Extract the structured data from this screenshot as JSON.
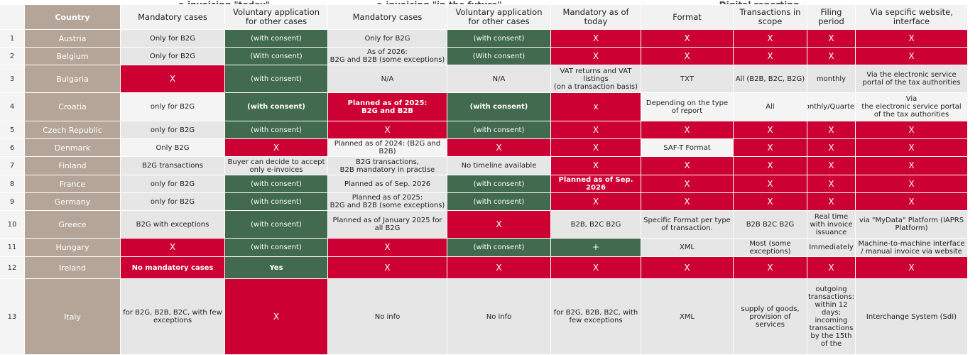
{
  "groups": [
    {
      "label": "e-invoicing \"today\"",
      "from": 2,
      "span": 2
    },
    {
      "label": "e-invoicing \"in the future\"",
      "from": 4,
      "span": 2
    },
    {
      "label": "Digital reporting",
      "from": 6,
      "span": 5
    }
  ],
  "header": [
    "Country",
    "Mandatory cases",
    "Voluntary application for other cases",
    "Mandatory cases",
    "Voluntary application for other cases",
    "Mandatory as of today",
    "Format",
    "Transactions in scope",
    "Filing period",
    "Via sepcific website, interface"
  ],
  "rows": [
    {
      "no": "1",
      "country": "Austria",
      "cells": [
        {
          "text": "Only for B2G",
          "color": "#e6e6e6"
        },
        {
          "text": "(with consent)",
          "color": "#416a4f"
        },
        {
          "text": "Only for B2G",
          "color": "#e6e6e6"
        },
        {
          "text": "(with consent)",
          "color": "#416a4f"
        },
        {
          "text": "X",
          "color": "#cc0033"
        },
        {
          "text": "X",
          "color": "#cc0033"
        },
        {
          "text": "X",
          "color": "#cc0033"
        },
        {
          "text": "X",
          "color": "#cc0033"
        },
        {
          "text": "X",
          "color": "#cc0033"
        }
      ]
    },
    {
      "no": "2",
      "country": "Belgium",
      "cells": [
        {
          "text": "Only for B2G",
          "color": "#e6e6e6"
        },
        {
          "text": "(With consent)",
          "color": "#416a4f"
        },
        {
          "text": "As of 2026:\nB2G and B2B (some exceptions)",
          "color": "#e6e6e6"
        },
        {
          "text": "(With consent)",
          "color": "#416a4f"
        },
        {
          "text": "X",
          "color": "#cc0033"
        },
        {
          "text": "X",
          "color": "#cc0033"
        },
        {
          "text": "X",
          "color": "#cc0033"
        },
        {
          "text": "X",
          "color": "#cc0033"
        },
        {
          "text": "X",
          "color": "#cc0033"
        }
      ]
    },
    {
      "no": "3",
      "country": "Bulgaria",
      "cells": [
        {
          "text": "X",
          "color": "#cc0033"
        },
        {
          "text": "(with consent)",
          "color": "#416a4f"
        },
        {
          "text": "N/A",
          "color": "#e6e6e6"
        },
        {
          "text": "N/A",
          "color": "#e6e6e6"
        },
        {
          "text": "VAT returns and VAT listings\n(on a transaction basis)",
          "color": "#e6e6e6"
        },
        {
          "text": "TXT",
          "color": "#e6e6e6"
        },
        {
          "text": "All (B2B, B2C, B2G)",
          "color": "#e6e6e6"
        },
        {
          "text": "monthly",
          "color": "#e6e6e6"
        },
        {
          "text": "Via the electronic service portal of the tax authorities",
          "color": "#e6e6e6"
        }
      ]
    },
    {
      "no": "4",
      "country": "Croatia",
      "cells": [
        {
          "text": "only for B2G",
          "color": "#f4f4f4"
        },
        {
          "text": "(with consent)",
          "color": "#416a4f",
          "bold": true
        },
        {
          "text": "Planned as of 2025:\nB2G and B2B",
          "color": "#cc0033",
          "bold": true
        },
        {
          "text": "(with consent)",
          "color": "#416a4f",
          "bold": true
        },
        {
          "text": "x",
          "color": "#cc0033"
        },
        {
          "text": "Depending on the type of report",
          "color": "#f4f4f4"
        },
        {
          "text": "All",
          "color": "#f4f4f4"
        },
        {
          "text": "Monthly/Quarterly",
          "color": "#f4f4f4"
        },
        {
          "text": "Via\nthe electronic service portal of the tax authorities",
          "color": "#f4f4f4"
        }
      ]
    },
    {
      "no": "5",
      "country": "Czech Republic",
      "cells": [
        {
          "text": "only for B2G",
          "color": "#e6e6e6"
        },
        {
          "text": "(with consent)",
          "color": "#416a4f"
        },
        {
          "text": "X",
          "color": "#cc0033"
        },
        {
          "text": "(with consent)",
          "color": "#416a4f"
        },
        {
          "text": "X",
          "color": "#cc0033"
        },
        {
          "text": "X",
          "color": "#cc0033"
        },
        {
          "text": "X",
          "color": "#cc0033"
        },
        {
          "text": "X",
          "color": "#cc0033"
        },
        {
          "text": "X",
          "color": "#cc0033"
        }
      ]
    },
    {
      "no": "6",
      "country": "Denmark",
      "cells": [
        {
          "text": "Only B2G",
          "color": "#f4f4f4"
        },
        {
          "text": "X",
          "color": "#cc0033"
        },
        {
          "text": "Planned as of 2024: (B2G and B2B)",
          "color": "#f4f4f4"
        },
        {
          "text": "X",
          "color": "#cc0033"
        },
        {
          "text": "X",
          "color": "#cc0033"
        },
        {
          "text": "SAF-T Format",
          "color": "#f4f4f4"
        },
        {
          "text": "X",
          "color": "#cc0033"
        },
        {
          "text": "X",
          "color": "#cc0033"
        },
        {
          "text": "X",
          "color": "#cc0033"
        }
      ]
    },
    {
      "no": "7",
      "country": "Finland",
      "cells": [
        {
          "text": "B2G transactions",
          "color": "#e6e6e6"
        },
        {
          "text": "Buyer can decide to accept only e-invoices",
          "color": "#e6e6e6"
        },
        {
          "text": "B2G transactions,\nB2B mandatory in practise",
          "color": "#e6e6e6"
        },
        {
          "text": "No timeline available",
          "color": "#e6e6e6"
        },
        {
          "text": "X",
          "color": "#cc0033"
        },
        {
          "text": "X",
          "color": "#cc0033"
        },
        {
          "text": "X",
          "color": "#cc0033"
        },
        {
          "text": "X",
          "color": "#cc0033"
        },
        {
          "text": "X",
          "color": "#cc0033"
        }
      ]
    },
    {
      "no": "8",
      "country": "France",
      "cells": [
        {
          "text": "only for B2G",
          "color": "#e6e6e6"
        },
        {
          "text": "(with consent)",
          "color": "#416a4f"
        },
        {
          "text": "Planned as of Sep. 2026",
          "color": "#e6e6e6"
        },
        {
          "text": "(with consent)",
          "color": "#416a4f"
        },
        {
          "text": "Planned as of Sep. 2026",
          "color": "#cc0033",
          "bold": true
        },
        {
          "text": "X",
          "color": "#cc0033"
        },
        {
          "text": "X",
          "color": "#cc0033"
        },
        {
          "text": "X",
          "color": "#cc0033"
        },
        {
          "text": "X",
          "color": "#cc0033"
        }
      ]
    },
    {
      "no": "9",
      "country": "Germany",
      "cells": [
        {
          "text": "only for B2G",
          "color": "#e6e6e6"
        },
        {
          "text": "(with consent)",
          "color": "#416a4f"
        },
        {
          "text": "Planned as of 2025:\nB2G and B2B (some exceptions)",
          "color": "#e6e6e6"
        },
        {
          "text": "(with consent)",
          "color": "#416a4f"
        },
        {
          "text": "X",
          "color": "#cc0033"
        },
        {
          "text": "X",
          "color": "#cc0033"
        },
        {
          "text": "X",
          "color": "#cc0033"
        },
        {
          "text": "X",
          "color": "#cc0033"
        },
        {
          "text": "X",
          "color": "#cc0033"
        }
      ]
    },
    {
      "no": "10",
      "country": "Greece",
      "cells": [
        {
          "text": "B2G with exceptions",
          "color": "#e6e6e6"
        },
        {
          "text": "(with consent)",
          "color": "#416a4f"
        },
        {
          "text": "Planned as of  January 2025 for all B2G",
          "color": "#e6e6e6"
        },
        {
          "text": "X",
          "color": "#cc0033"
        },
        {
          "text": "B2B, B2C B2G",
          "color": "#e6e6e6"
        },
        {
          "text": "Specific Format per type of transaction.",
          "color": "#e6e6e6"
        },
        {
          "text": "B2B B2C B2G",
          "color": "#e6e6e6"
        },
        {
          "text": "Real time with invoice issuance",
          "color": "#e6e6e6"
        },
        {
          "text": "via \"MyData\" Platform (IAPRS Platform)",
          "color": "#e6e6e6"
        }
      ]
    },
    {
      "no": "11",
      "country": "Hungary",
      "cells": [
        {
          "text": "X",
          "color": "#cc0033"
        },
        {
          "text": "(with consent)",
          "color": "#416a4f"
        },
        {
          "text": "X",
          "color": "#cc0033"
        },
        {
          "text": "(with consent)",
          "color": "#416a4f"
        },
        {
          "text": "+",
          "color": "#416a4f"
        },
        {
          "text": "XML",
          "color": "#e6e6e6"
        },
        {
          "text": "Most (some exceptions)",
          "color": "#e6e6e6"
        },
        {
          "text": "Immediately",
          "color": "#e6e6e6"
        },
        {
          "text": "Machine-to-machine interface / manual invoice via website",
          "color": "#e6e6e6"
        }
      ]
    },
    {
      "no": "12",
      "country": "Ireland",
      "cells": [
        {
          "text": "No mandatory cases",
          "color": "#cc0033",
          "bold": true
        },
        {
          "text": "Yes",
          "color": "#416a4f",
          "bold": true
        },
        {
          "text": "X",
          "color": "#cc0033"
        },
        {
          "text": "X",
          "color": "#cc0033"
        },
        {
          "text": "X",
          "color": "#cc0033"
        },
        {
          "text": "X",
          "color": "#cc0033"
        },
        {
          "text": "X",
          "color": "#cc0033"
        },
        {
          "text": "X",
          "color": "#cc0033"
        },
        {
          "text": "X",
          "color": "#cc0033"
        }
      ]
    },
    {
      "no": "13",
      "country": "Italy",
      "cells": [
        {
          "text": "for B2G, B2B, B2C, with few exceptions",
          "color": "#e6e6e6"
        },
        {
          "text": "X",
          "color": "#cc0033"
        },
        {
          "text": "No info",
          "color": "#e6e6e6"
        },
        {
          "text": "No info",
          "color": "#e6e6e6"
        },
        {
          "text": "for B2G, B2B, B2C, with few exceptions",
          "color": "#e6e6e6"
        },
        {
          "text": "XML",
          "color": "#e6e6e6"
        },
        {
          "text": "supply of goods, provision of services",
          "color": "#e6e6e6"
        },
        {
          "text": "outgoing transactions: within 12 days; incoming transactions by the 15th of the",
          "color": "#e6e6e6"
        },
        {
          "text": "Interchange System (SdI)",
          "color": "#e6e6e6"
        }
      ]
    }
  ]
}
